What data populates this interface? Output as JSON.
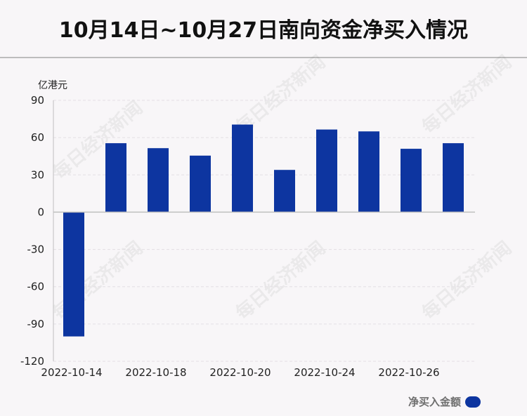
{
  "title": "10月14日~10月27日南向资金净买入情况",
  "watermark_text": "每日经济新闻",
  "colors": {
    "bar": "#0d35a0",
    "grid": "#e3dfe4",
    "axis": "#bfbfbf",
    "text": "#222222"
  },
  "chart_data": {
    "type": "bar",
    "title": "10月14日~10月27日南向资金净买入情况",
    "ylabel": "亿港元",
    "xlabel": "",
    "ylim": [
      -120,
      90
    ],
    "yticks": [
      90,
      60,
      30,
      0,
      -30,
      -60,
      -90,
      -120
    ],
    "grid": true,
    "legend_position": "bottom-right",
    "x_tick_labels": [
      "2022-10-14",
      "2022-10-18",
      "2022-10-20",
      "2022-10-24",
      "2022-10-26"
    ],
    "x_tick_indices": [
      0,
      2,
      4,
      6,
      8
    ],
    "series": [
      {
        "name": "净买入金额",
        "values": [
          -100,
          55.5,
          51.5,
          45.5,
          70.5,
          34,
          66.5,
          65,
          51,
          55.5
        ]
      }
    ]
  }
}
